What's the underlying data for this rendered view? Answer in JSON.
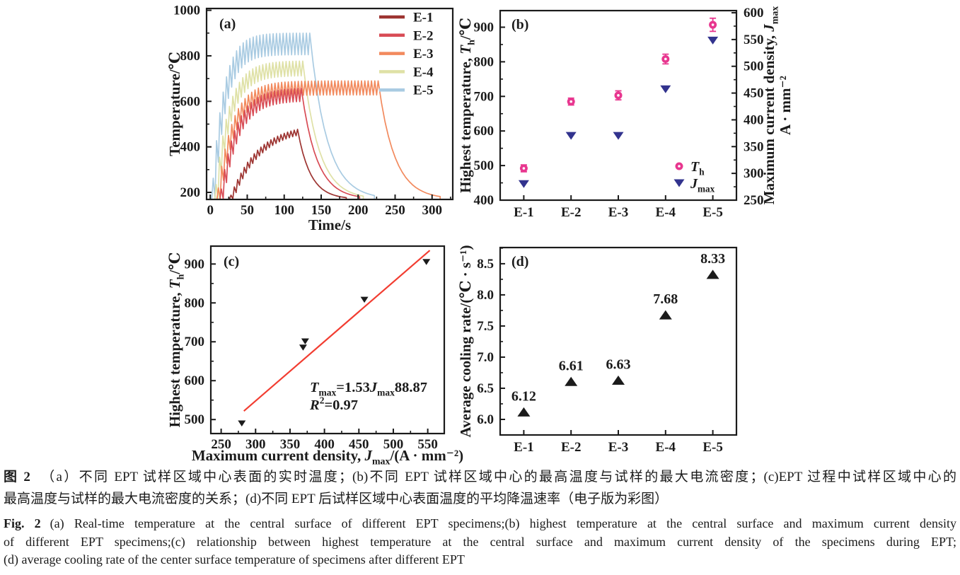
{
  "chart_data": [
    {
      "id": "a",
      "type": "line",
      "panel_label": "(a)",
      "xlabel": "Time/s",
      "ylabel": "Temperature/℃",
      "xlim": [
        -5,
        328
      ],
      "ylim": [
        169,
        1008
      ],
      "xticks": [
        0,
        50,
        100,
        150,
        200,
        250,
        300
      ],
      "x_minor_step": 25,
      "yticks": [
        200,
        400,
        600,
        800,
        1000
      ],
      "y_minor_step": 100,
      "grid": false,
      "legend_position": "top-right",
      "legend": [
        "E-1",
        "E-2",
        "E-3",
        "E-4",
        "E-5"
      ],
      "pulse_period": 4.5,
      "series": [
        {
          "name": "E-1",
          "color": "#9d3431",
          "t_start": 26,
          "t_end": 121,
          "t_final": 184,
          "temp_start": 170,
          "temp_peak": 505,
          "rise_tau": 37,
          "osc_amp": 25
        },
        {
          "name": "E-2",
          "color": "#d84c55",
          "t_start": 13,
          "t_end": 124,
          "t_final": 202,
          "temp_start": 170,
          "temp_peak": 660,
          "rise_tau": 21,
          "osc_amp": 58
        },
        {
          "name": "E-3",
          "color": "#f28a5e",
          "t_start": 9,
          "t_end": 230,
          "t_final": 311,
          "temp_start": 170,
          "temp_peak": 690,
          "rise_tau": 20,
          "osc_amp": 62
        },
        {
          "name": "E-4",
          "color": "#dfe1a6",
          "t_start": 6,
          "t_end": 126,
          "t_final": 207,
          "temp_start": 170,
          "temp_peak": 778,
          "rise_tau": 18,
          "osc_amp": 65
        },
        {
          "name": "E-5",
          "color": "#a9cbe2",
          "t_start": 2,
          "t_end": 136,
          "t_final": 222,
          "temp_start": 170,
          "temp_peak": 900,
          "rise_tau": 15,
          "osc_amp": 95
        }
      ]
    },
    {
      "id": "b",
      "type": "dual-scatter",
      "panel_label": "(b)",
      "categories": [
        "E-1",
        "E-2",
        "E-3",
        "E-4",
        "E-5"
      ],
      "left_axis": {
        "ylim": [
          400,
          948
        ],
        "ticks": [
          400,
          500,
          600,
          700,
          800,
          900
        ],
        "minor_step": 50,
        "label_segments": [
          {
            "t": "Highest temperature, "
          },
          {
            "t": "T",
            "italic": true
          },
          {
            "t": "h",
            "sub": true
          },
          {
            "t": "/℃"
          }
        ]
      },
      "right_axis": {
        "ylim": [
          250,
          604
        ],
        "ticks": [
          250,
          300,
          350,
          400,
          450,
          500,
          550,
          600
        ],
        "minor_step": 25,
        "label_line1_segments": [
          {
            "t": "Maximum current density, "
          },
          {
            "t": "J",
            "italic": true
          },
          {
            "t": "max",
            "sub": true
          }
        ],
        "label_line2": "A · mm⁻²"
      },
      "series": [
        {
          "legend_segments": [
            {
              "t": "T",
              "italic": true
            },
            {
              "t": "h",
              "sub": true
            }
          ],
          "marker": "circle",
          "color": "#e8368f",
          "axis": "left",
          "values": [
            492,
            685,
            703,
            808,
            907
          ],
          "errors": [
            10,
            10,
            13,
            14,
            19
          ]
        },
        {
          "legend_segments": [
            {
              "t": "J",
              "italic": true
            },
            {
              "t": "max",
              "sub": true
            }
          ],
          "marker": "triangle-down",
          "color": "#32338e",
          "axis": "right",
          "values": [
            280,
            370,
            370,
            457,
            548
          ]
        }
      ]
    },
    {
      "id": "c",
      "type": "scatter-fit",
      "panel_label": "(c)",
      "xlabel_segments": [
        {
          "t": "Maximum current density, "
        },
        {
          "t": "J",
          "italic": true
        },
        {
          "t": "max",
          "sub": true
        },
        {
          "t": "/(A · mm⁻²)"
        }
      ],
      "ylabel_segments": [
        {
          "t": "Highest temperature, "
        },
        {
          "t": "T",
          "italic": true
        },
        {
          "t": "h",
          "sub": true
        },
        {
          "t": "/℃"
        }
      ],
      "xlim": [
        235,
        574
      ],
      "ylim": [
        464,
        946
      ],
      "xticks": [
        250,
        300,
        350,
        400,
        450,
        500,
        550
      ],
      "x_minor_step": 25,
      "yticks": [
        500,
        600,
        700,
        800,
        900
      ],
      "y_minor_step": 50,
      "marker": "triangle-down",
      "marker_color": "#1b1b1b",
      "points": [
        [
          280,
          490
        ],
        [
          369,
          685
        ],
        [
          372,
          701
        ],
        [
          458,
          808
        ],
        [
          548,
          905
        ]
      ],
      "fit": {
        "slope": 1.53,
        "intercept": 88.87,
        "x_start": 283,
        "x_end": 553,
        "color": "#f23d31"
      },
      "equation_line1_segments": [
        {
          "t": "T",
          "italic": true
        },
        {
          "t": "max",
          "sub": true
        },
        {
          "t": "=1.53"
        },
        {
          "t": "J",
          "italic": true
        },
        {
          "t": "max",
          "sub": true
        },
        {
          "t": "88.87"
        }
      ],
      "equation_line2_segments": [
        {
          "t": "R",
          "italic": true
        },
        {
          "t": "2",
          "sup": true
        },
        {
          "t": "=0.97"
        }
      ]
    },
    {
      "id": "d",
      "type": "labeled-scatter",
      "panel_label": "(d)",
      "categories": [
        "E-1",
        "E-2",
        "E-3",
        "E-4",
        "E-5"
      ],
      "ylabel": "Average cooling rate/(℃ · s⁻¹)",
      "ylim": [
        5.75,
        8.76
      ],
      "yticks": [
        6.0,
        6.5,
        7.0,
        7.5,
        8.0,
        8.5
      ],
      "ytick_labels": [
        "6.0",
        "6.5",
        "7.0",
        "7.5",
        "8.0",
        "8.5"
      ],
      "y_minor_step": 0.25,
      "values": [
        6.12,
        6.61,
        6.63,
        7.68,
        8.33
      ],
      "point_labels": [
        "6.12",
        "6.61",
        "6.63",
        "7.68",
        "8.33"
      ],
      "marker": "triangle-up",
      "marker_color": "#1b1b1b"
    }
  ],
  "caption": {
    "zh_prefix": "图 2",
    "zh_line1": "（a）不同 EPT 试样区域中心表面的实时温度；(b)不同 EPT 试样区域中心的最高温度与试样的最大电流密度；(c)EPT 过程中试样区域中心的",
    "zh_line2": "最高温度与试样的最大电流密度的关系；(d)不同 EPT 后试样区域中心表面温度的平均降温速率（电子版为彩图）",
    "en_prefix": "Fig. 2",
    "en_line1": "(a) Real-time temperature at the central surface of different EPT specimens;(b) highest temperature at the central surface and maximum current density",
    "en_line2": "of different EPT specimens;(c) relationship between highest temperature at the central surface and maximum current density of the specimens during EPT;",
    "en_line3": "(d) average cooling rate of the center surface temperature of specimens after different EPT"
  }
}
